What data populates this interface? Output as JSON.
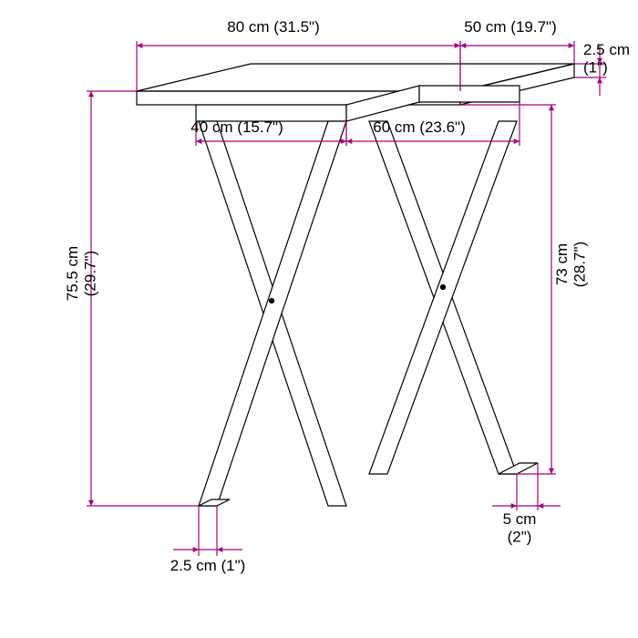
{
  "diagram": {
    "type": "infographic",
    "background_color": "#ffffff",
    "outline_color": "#000000",
    "dimension_color": "#a6007a",
    "label_color": "#000000",
    "label_fontsize": 17,
    "arrow_size": 7,
    "measurements": {
      "top_width": {
        "metric": "80 cm",
        "imperial": "(31.5\")"
      },
      "top_depth": {
        "metric": "50 cm",
        "imperial": "(19.7\")"
      },
      "tabletop_thick": {
        "metric": "2.5 cm",
        "imperial": "(1\")"
      },
      "apron_w": {
        "metric": "40 cm",
        "imperial": "(15.7\")"
      },
      "apron_d": {
        "metric": "60 cm",
        "imperial": "(23.6\")"
      },
      "overall_h": {
        "metric": "75.5 cm",
        "imperial": "(29.7\")"
      },
      "floor_to_top": {
        "metric": "73 cm",
        "imperial": "(28.7\")"
      },
      "leg_sq": {
        "metric": "5 cm",
        "imperial": "(2\")"
      },
      "leg_th": {
        "metric": "2.5 cm",
        "imperial": "(1\")"
      }
    },
    "geometry_note": "Front elevation of an X-frame table with isometric tabletop."
  }
}
